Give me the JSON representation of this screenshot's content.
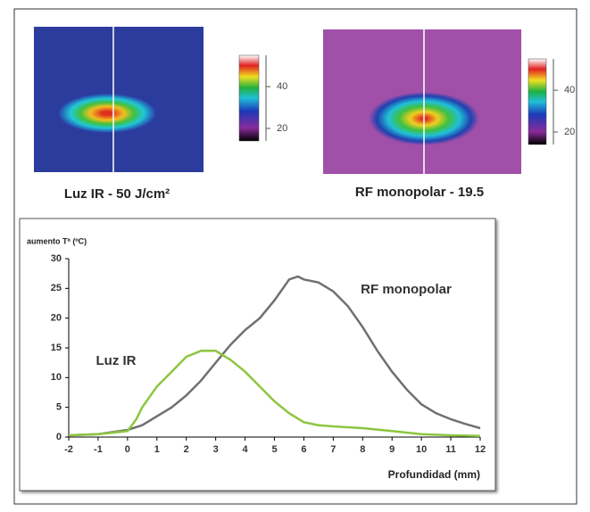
{
  "panels": [
    {
      "caption": "Luz IR - 50 J/cm²",
      "colorbar_lim": [
        14,
        55
      ],
      "colorbar_ticks": [
        20,
        40
      ]
    },
    {
      "caption": "RF monopolar - 19.5",
      "colorbar_lim": [
        14,
        55
      ],
      "colorbar_ticks": [
        20,
        40
      ]
    }
  ],
  "chart_data": {
    "type": "line",
    "y_label": "aumento Tª (ºC)",
    "x_label": "Profundidad (mm)",
    "xlim": [
      -2,
      12
    ],
    "xticks": [
      -2,
      -1,
      0,
      1,
      2,
      3,
      4,
      5,
      6,
      7,
      8,
      9,
      10,
      11,
      12
    ],
    "ylim": [
      0,
      30
    ],
    "yticks": [
      0,
      5,
      10,
      15,
      20,
      25,
      30
    ],
    "series": [
      {
        "name": "RF monopolar",
        "color": "#707070",
        "x": [
          -2,
          -1,
          0,
          0.5,
          1,
          1.5,
          2,
          2.5,
          3,
          3.5,
          4,
          4.5,
          5,
          5.5,
          5.8,
          6,
          6.5,
          7,
          7.5,
          8,
          8.5,
          9,
          9.5,
          10,
          10.5,
          11,
          11.5,
          12
        ],
        "values": [
          0.3,
          0.5,
          1.2,
          2,
          3.5,
          5,
          7,
          9.5,
          12.5,
          15.5,
          18,
          20,
          23,
          26.5,
          27,
          26.5,
          26,
          24.5,
          22,
          18.5,
          14.5,
          11,
          8,
          5.5,
          4,
          3,
          2.2,
          1.5
        ]
      },
      {
        "name": "Luz IR",
        "color": "#8cc63f",
        "x": [
          -2,
          -1,
          0,
          0.3,
          0.5,
          1,
          1.5,
          2,
          2.5,
          3,
          3.5,
          4,
          4.5,
          5,
          5.5,
          6,
          6.5,
          7,
          8,
          9,
          10,
          11,
          12
        ],
        "values": [
          0.3,
          0.5,
          1,
          3,
          5,
          8.5,
          11,
          13.5,
          14.5,
          14.5,
          13,
          11,
          8.5,
          6,
          4,
          2.5,
          2,
          1.8,
          1.5,
          1,
          0.5,
          0.3,
          0.2
        ]
      }
    ]
  }
}
